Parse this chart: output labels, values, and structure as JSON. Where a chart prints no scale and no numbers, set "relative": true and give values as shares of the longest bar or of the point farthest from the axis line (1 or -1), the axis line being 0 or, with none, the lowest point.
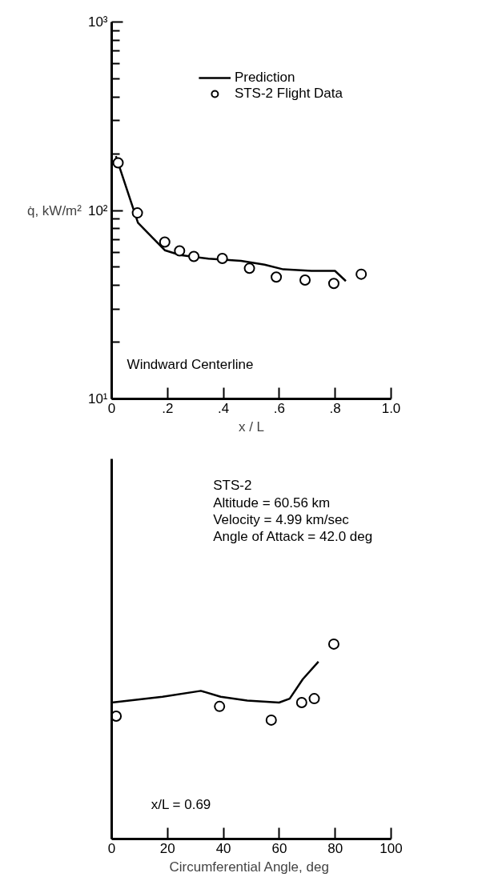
{
  "chart_data": [
    {
      "type": "line",
      "xlabel": "x / L",
      "ylabel": "q̇, kW/m²",
      "log": "y",
      "xlim": [
        0,
        1.0
      ],
      "ylim": [
        10,
        1000
      ],
      "xticks": [
        0,
        {
          "value": 0.2,
          "label": ".2"
        },
        {
          "value": 0.4,
          "label": ".4"
        },
        {
          "value": 0.6,
          "label": ".6"
        },
        {
          "value": 0.8,
          "label": ".8"
        },
        {
          "value": 1.0,
          "label": "1.0"
        }
      ],
      "yticks": [
        {
          "value": 10,
          "label": "10¹"
        },
        {
          "value": 20,
          "label": null
        },
        {
          "value": 30,
          "label": null
        },
        {
          "value": 40,
          "label": null
        },
        {
          "value": 50,
          "label": null
        },
        {
          "value": 60,
          "label": null
        },
        {
          "value": 70,
          "label": null
        },
        {
          "value": 80,
          "label": null
        },
        {
          "value": 90,
          "label": null
        },
        {
          "value": 100,
          "label": "10²"
        },
        {
          "value": 200,
          "label": null
        },
        {
          "value": 300,
          "label": null
        },
        {
          "value": 400,
          "label": null
        },
        {
          "value": 500,
          "label": null
        },
        {
          "value": 600,
          "label": null
        },
        {
          "value": 700,
          "label": null
        },
        {
          "value": 800,
          "label": null
        },
        {
          "value": 900,
          "label": null
        },
        {
          "value": 1000,
          "label": "10³"
        }
      ],
      "grid": false,
      "legend": "top right",
      "annotations": [
        "Windward Centerline"
      ],
      "series": [
        {
          "name": "Prediction",
          "color": "#000000",
          "line_style": "solid",
          "x": [
            0.015,
            0.094,
            0.145,
            0.19,
            0.245,
            0.346,
            0.463,
            0.547,
            0.614,
            0.715,
            0.799,
            0.838
          ],
          "values": [
            194,
            86,
            72,
            61.5,
            58,
            55.5,
            54,
            51.6,
            48.7,
            47.8,
            47.8,
            42.2
          ]
        },
        {
          "name": "STS-2 Flight Data",
          "type": "scatter",
          "marker": "circle",
          "color": "#000000",
          "x": [
            0.023,
            0.092,
            0.19,
            0.243,
            0.294,
            0.396,
            0.493,
            0.589,
            0.692,
            0.795,
            0.893
          ],
          "values": [
            179,
            97,
            68,
            61,
            57,
            55.6,
            49.3,
            44.3,
            42.7,
            41,
            45.9
          ]
        }
      ]
    },
    {
      "type": "line",
      "xlabel": "Circumferential  Angle, deg",
      "relative": true,
      "xlim": [
        0,
        100
      ],
      "xticks": [
        0,
        20,
        40,
        60,
        80,
        100
      ],
      "grid": false,
      "annotations": [
        "STS-2",
        "Altitude = 60.56 km",
        "Velocity  = 4.99 km/sec",
        "Angle of Attack = 42.0 deg",
        "x/L = 0.69"
      ],
      "series": [
        {
          "color": "#000000",
          "line_style": "solid",
          "x": [
            0,
            18.2,
            31.9,
            39,
            48.5,
            59.9,
            63.7,
            68.4,
            74
          ],
          "values": [
            0.7,
            0.73,
            0.76,
            0.73,
            0.71,
            0.7,
            0.72,
            0.82,
            0.91
          ]
        },
        {
          "type": "scatter",
          "marker": "circle",
          "color": "#000000",
          "x": [
            1.6,
            38.6,
            57.1,
            68,
            72.5,
            79.5
          ],
          "values": [
            0.63,
            0.68,
            0.61,
            0.7,
            0.72,
            1.0
          ]
        }
      ]
    }
  ]
}
